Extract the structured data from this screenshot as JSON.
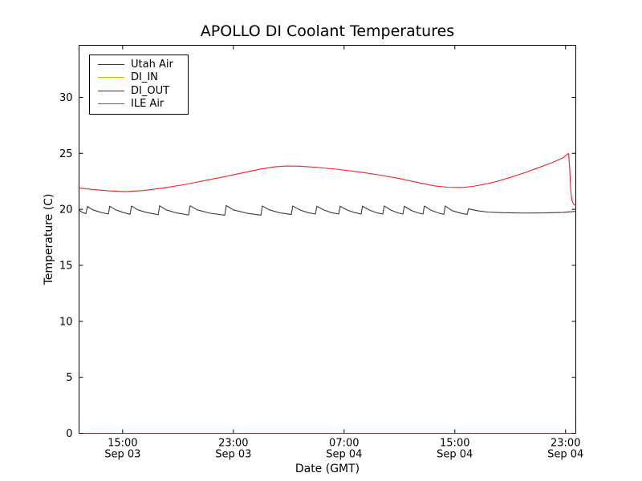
{
  "chart_data": {
    "type": "line",
    "title": "APOLLO DI Coolant Temperatures",
    "xlabel": "Date (GMT)",
    "ylabel": "Temperature (C)",
    "grid": false,
    "legend_position": "upper left",
    "x_unit": "hours since Sep 03 12:00 GMT",
    "xlim": [
      -0.15,
      35.74
    ],
    "ylim": [
      0,
      34.65
    ],
    "yticks": [
      0,
      5,
      10,
      15,
      20,
      25,
      30
    ],
    "xticks": [
      {
        "t": 3,
        "time": "15:00",
        "date": "Sep 03"
      },
      {
        "t": 11,
        "time": "23:00",
        "date": "Sep 03"
      },
      {
        "t": 19,
        "time": "07:00",
        "date": "Sep 04"
      },
      {
        "t": 27,
        "time": "15:00",
        "date": "Sep 04"
      },
      {
        "t": 35,
        "time": "23:00",
        "date": "Sep 04"
      }
    ],
    "series": [
      {
        "name": "Utah Air",
        "color": "#3a3a3a",
        "points": [
          [
            -0.15,
            19.95
          ],
          [
            0.1,
            19.72
          ],
          [
            0.35,
            19.62
          ],
          [
            0.45,
            20.25
          ],
          [
            0.85,
            19.95
          ],
          [
            1.45,
            19.72
          ],
          [
            1.97,
            19.58
          ],
          [
            2.07,
            20.28
          ],
          [
            2.5,
            19.95
          ],
          [
            3.1,
            19.7
          ],
          [
            3.54,
            19.56
          ],
          [
            3.64,
            20.3
          ],
          [
            4.1,
            19.95
          ],
          [
            4.8,
            19.7
          ],
          [
            5.57,
            19.52
          ],
          [
            5.67,
            20.32
          ],
          [
            6.15,
            19.95
          ],
          [
            6.9,
            19.68
          ],
          [
            7.77,
            19.5
          ],
          [
            7.87,
            20.32
          ],
          [
            8.4,
            19.95
          ],
          [
            9.3,
            19.66
          ],
          [
            10.38,
            19.48
          ],
          [
            10.48,
            20.34
          ],
          [
            11.0,
            19.95
          ],
          [
            12.0,
            19.65
          ],
          [
            12.99,
            19.48
          ],
          [
            13.09,
            20.3
          ],
          [
            13.6,
            19.95
          ],
          [
            14.4,
            19.68
          ],
          [
            15.19,
            19.54
          ],
          [
            15.29,
            20.3
          ],
          [
            15.8,
            19.95
          ],
          [
            16.4,
            19.7
          ],
          [
            16.93,
            19.58
          ],
          [
            17.03,
            20.28
          ],
          [
            17.55,
            19.94
          ],
          [
            18.1,
            19.7
          ],
          [
            18.61,
            19.58
          ],
          [
            18.71,
            20.28
          ],
          [
            19.25,
            19.92
          ],
          [
            19.8,
            19.7
          ],
          [
            20.23,
            19.58
          ],
          [
            20.33,
            20.28
          ],
          [
            20.85,
            19.92
          ],
          [
            21.4,
            19.68
          ],
          [
            21.8,
            19.58
          ],
          [
            21.9,
            20.3
          ],
          [
            22.4,
            19.92
          ],
          [
            22.9,
            19.68
          ],
          [
            23.25,
            19.58
          ],
          [
            23.35,
            20.28
          ],
          [
            23.85,
            19.9
          ],
          [
            24.35,
            19.68
          ],
          [
            24.7,
            19.58
          ],
          [
            24.8,
            20.3
          ],
          [
            25.3,
            19.9
          ],
          [
            25.85,
            19.66
          ],
          [
            26.21,
            19.56
          ],
          [
            26.31,
            20.3
          ],
          [
            26.8,
            19.88
          ],
          [
            27.5,
            19.64
          ],
          [
            27.89,
            19.55
          ],
          [
            27.99,
            20.05
          ],
          [
            28.6,
            19.88
          ],
          [
            29.4,
            19.76
          ],
          [
            30.5,
            19.7
          ],
          [
            32.0,
            19.67
          ],
          [
            33.5,
            19.68
          ],
          [
            34.8,
            19.73
          ],
          [
            35.74,
            19.82
          ]
        ]
      },
      {
        "name": "DI_IN",
        "color": "#ffa500",
        "points": [
          [
            -0.15,
            0
          ],
          [
            35.74,
            0
          ]
        ]
      },
      {
        "name": "DI_OUT",
        "color": "#800080",
        "points": [
          [
            -0.15,
            0
          ],
          [
            35.74,
            0
          ]
        ]
      },
      {
        "name": "ILE Air",
        "color": "#ee2222",
        "points": [
          [
            -0.15,
            21.9
          ],
          [
            0.8,
            21.78
          ],
          [
            2.0,
            21.65
          ],
          [
            3.2,
            21.58
          ],
          [
            4.5,
            21.68
          ],
          [
            6.0,
            21.92
          ],
          [
            7.5,
            22.22
          ],
          [
            9.0,
            22.58
          ],
          [
            10.5,
            22.95
          ],
          [
            11.8,
            23.3
          ],
          [
            13.0,
            23.6
          ],
          [
            14.0,
            23.8
          ],
          [
            14.8,
            23.87
          ],
          [
            15.8,
            23.85
          ],
          [
            17.0,
            23.75
          ],
          [
            18.5,
            23.58
          ],
          [
            20.0,
            23.35
          ],
          [
            21.5,
            23.08
          ],
          [
            23.0,
            22.75
          ],
          [
            24.5,
            22.35
          ],
          [
            25.5,
            22.1
          ],
          [
            26.5,
            21.97
          ],
          [
            27.5,
            21.95
          ],
          [
            28.3,
            22.05
          ],
          [
            29.2,
            22.25
          ],
          [
            30.0,
            22.48
          ],
          [
            31.0,
            22.85
          ],
          [
            32.0,
            23.25
          ],
          [
            33.0,
            23.7
          ],
          [
            34.0,
            24.15
          ],
          [
            34.8,
            24.6
          ],
          [
            35.22,
            25.0
          ],
          [
            35.3,
            23.6
          ],
          [
            35.38,
            21.6
          ],
          [
            35.46,
            20.8
          ],
          [
            35.58,
            20.45
          ],
          [
            35.74,
            20.32
          ]
        ]
      }
    ]
  }
}
